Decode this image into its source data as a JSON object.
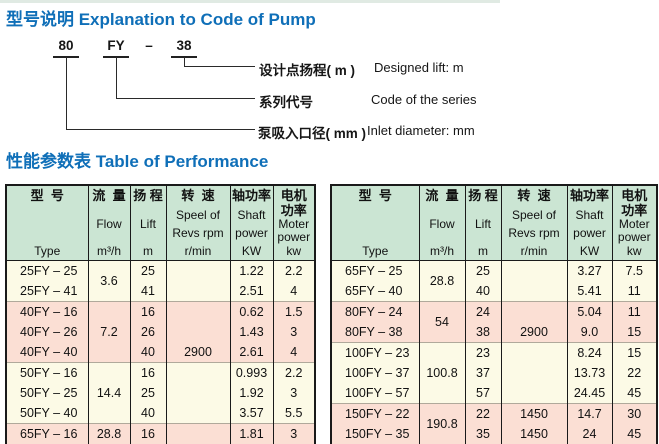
{
  "titles": {
    "section1": "型号说明 Explanation to Code of Pump",
    "section2": "性能参数表  Table of Performance"
  },
  "code_diagram": {
    "inlet": "80",
    "series": "FY",
    "dash": "–",
    "lift": "38",
    "labels": [
      {
        "zh": "设计点扬程( m )",
        "en": "Designed lift: m"
      },
      {
        "zh": "系列代号",
        "en": "Code of the series"
      },
      {
        "zh": "泵吸入口径( mm )",
        "en": "Inlet diameter: mm"
      }
    ]
  },
  "performance_table": {
    "columns": [
      {
        "id": "type",
        "zh": [
          "型  号"
        ],
        "en": [
          "Type"
        ]
      },
      {
        "id": "flow",
        "zh": [
          "流  量"
        ],
        "en": [
          "Flow",
          "m³/h"
        ]
      },
      {
        "id": "lift",
        "zh": [
          "扬 程"
        ],
        "en": [
          "Lift",
          "m"
        ]
      },
      {
        "id": "speed",
        "zh": [
          "转  速"
        ],
        "en": [
          "Speel of",
          "Revs rpm",
          "r/min"
        ]
      },
      {
        "id": "shaft",
        "zh": [
          "轴功率"
        ],
        "en": [
          "Shaft",
          "power",
          "KW"
        ]
      },
      {
        "id": "motor",
        "zh": [
          "电机",
          "功率"
        ],
        "en": [
          "Moter",
          "power",
          "kw"
        ]
      }
    ],
    "left_rows": [
      {
        "type": "25FY – 25",
        "flow": "3.6",
        "flow_span": 2,
        "lift": "25",
        "speed": "",
        "shaft": "1.22",
        "motor": "2.2",
        "bg": "cream",
        "gs": false
      },
      {
        "type": "25FY – 41",
        "flow": null,
        "lift": "41",
        "speed": "",
        "shaft": "2.51",
        "motor": "4",
        "bg": "cream",
        "gs": false
      },
      {
        "type": "40FY – 16",
        "flow": "7.2",
        "flow_span": 3,
        "lift": "16",
        "speed": "",
        "shaft": "0.62",
        "motor": "1.5",
        "bg": "pink",
        "gs": true
      },
      {
        "type": "40FY – 26",
        "flow": null,
        "lift": "26",
        "speed": "",
        "shaft": "1.43",
        "motor": "3",
        "bg": "pink",
        "gs": false
      },
      {
        "type": "40FY – 40",
        "flow": null,
        "lift": "40",
        "speed": "2900",
        "shaft": "2.61",
        "motor": "4",
        "bg": "pink",
        "gs": false
      },
      {
        "type": "50FY – 16",
        "flow": "14.4",
        "flow_span": 3,
        "lift": "16",
        "speed": "",
        "shaft": "0.993",
        "motor": "2.2",
        "bg": "cream",
        "gs": true
      },
      {
        "type": "50FY – 25",
        "flow": null,
        "lift": "25",
        "speed": "",
        "shaft": "1.92",
        "motor": "3",
        "bg": "cream",
        "gs": false
      },
      {
        "type": "50FY – 40",
        "flow": null,
        "lift": "40",
        "speed": "",
        "shaft": "3.57",
        "motor": "5.5",
        "bg": "cream",
        "gs": false
      },
      {
        "type": "65FY – 16",
        "flow": "28.8",
        "flow_span": 1,
        "lift": "16",
        "speed": "",
        "shaft": "1.81",
        "motor": "3",
        "bg": "pink",
        "gs": true
      }
    ],
    "right_rows": [
      {
        "type": "65FY – 25",
        "flow": "28.8",
        "flow_span": 2,
        "lift": "25",
        "speed": "",
        "shaft": "3.27",
        "motor": "7.5",
        "bg": "cream",
        "gs": false
      },
      {
        "type": "65FY – 40",
        "flow": null,
        "lift": "40",
        "speed": "",
        "shaft": "5.41",
        "motor": "11",
        "bg": "cream",
        "gs": false
      },
      {
        "type": "80FY – 24",
        "flow": "54",
        "flow_span": 2,
        "lift": "24",
        "speed": "",
        "shaft": "5.04",
        "motor": "11",
        "bg": "pink",
        "gs": true
      },
      {
        "type": "80FY – 38",
        "flow": null,
        "lift": "38",
        "speed": "2900",
        "shaft": "9.0",
        "motor": "15",
        "bg": "pink",
        "gs": false
      },
      {
        "type": "100FY – 23",
        "flow": "100.8",
        "flow_span": 3,
        "lift": "23",
        "speed": "",
        "shaft": "8.24",
        "motor": "15",
        "bg": "cream",
        "gs": true
      },
      {
        "type": "100FY – 37",
        "flow": null,
        "lift": "37",
        "speed": "",
        "shaft": "13.73",
        "motor": "22",
        "bg": "cream",
        "gs": false
      },
      {
        "type": "100FY – 57",
        "flow": null,
        "lift": "57",
        "speed": "",
        "shaft": "24.45",
        "motor": "45",
        "bg": "cream",
        "gs": false
      },
      {
        "type": "150FY – 22",
        "flow": "190.8",
        "flow_span": 2,
        "lift": "22",
        "speed": "1450",
        "shaft": "14.7",
        "motor": "30",
        "bg": "pink",
        "gs": true
      },
      {
        "type": "150FY – 35",
        "flow": null,
        "lift": "35",
        "speed": "1450",
        "shaft": "24",
        "motor": "45",
        "bg": "pink",
        "gs": false
      }
    ]
  },
  "colors": {
    "title_blue": "#0f6fb8",
    "header_green": "#cbe5d3",
    "row_cream": "#fcfae6",
    "row_pink": "#fbdfd4",
    "border_black": "#1a1a1a"
  }
}
